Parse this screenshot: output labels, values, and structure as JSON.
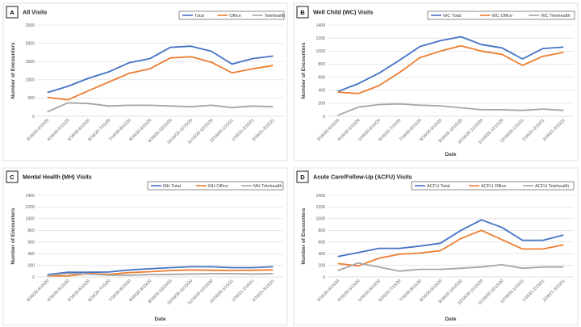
{
  "colors": {
    "total": "#4472C4",
    "office": "#ED7D31",
    "telehealth": "#A5A5A5",
    "grid": "#D9D9D9"
  },
  "chart_data": [
    {
      "type": "line",
      "letter": "A",
      "title": "All Visits",
      "xlabel": "",
      "ylabel": "Number of Encounters",
      "ylim": [
        0,
        2500
      ],
      "yticks": [
        0,
        500,
        1000,
        1500,
        2000,
        2500
      ],
      "grid": true,
      "legend": "top-right",
      "categories": [
        "3/16/20-4/15/20",
        "4/16/20-5/15/20",
        "5/16/20-6/15/20",
        "6/16/20-7/15/20",
        "7/16/20-8/15/20",
        "8/16/20-9/15/20",
        "9/16/20-10/15/20",
        "10/16/20-11/15/20",
        "11/16/20-12/15/20",
        "12/16/20-1/15/21",
        "1/16/21-2/15/21",
        "2/16/21-3/15/21"
      ],
      "series": [
        {
          "name": "Total",
          "key": "total",
          "values": [
            650,
            820,
            1040,
            1220,
            1470,
            1580,
            1890,
            1920,
            1780,
            1430,
            1580,
            1650
          ]
        },
        {
          "name": "Office",
          "key": "office",
          "values": [
            520,
            450,
            700,
            940,
            1180,
            1300,
            1600,
            1630,
            1480,
            1190,
            1300,
            1390
          ]
        },
        {
          "name": "Telehealth",
          "key": "telehealth",
          "values": [
            120,
            370,
            350,
            280,
            300,
            300,
            280,
            260,
            300,
            240,
            280,
            260
          ]
        }
      ]
    },
    {
      "type": "line",
      "letter": "B",
      "title": "Well Child (WC) Visits",
      "xlabel": "Date",
      "ylabel": "Number of Encounters",
      "ylim": [
        0,
        1400
      ],
      "yticks": [
        0,
        200,
        400,
        600,
        800,
        1000,
        1200,
        1400
      ],
      "grid": true,
      "legend": "top-right",
      "categories": [
        "3/16/20-4/15/20",
        "4/16/20-5/15/20",
        "5/16/20-6/15/20",
        "6/16/20-7/15/20",
        "7/16/20-8/15/20",
        "8/16/20-9/15/20",
        "9/16/20-10/15/20",
        "10/16/20-11/15/20",
        "11/16/20-12/15/20",
        "12/16/20-1/15/21",
        "1/16/21-2/15/21",
        "2/16/21-3/15/21"
      ],
      "series": [
        {
          "name": "WC Total",
          "key": "total",
          "values": [
            380,
            500,
            660,
            860,
            1070,
            1160,
            1220,
            1100,
            1050,
            880,
            1040,
            1060
          ]
        },
        {
          "name": "WC Office",
          "key": "office",
          "values": [
            370,
            350,
            470,
            670,
            900,
            1000,
            1080,
            1000,
            950,
            780,
            920,
            980
          ]
        },
        {
          "name": "WC Telehealth",
          "key": "telehealth",
          "values": [
            15,
            140,
            180,
            190,
            170,
            160,
            130,
            100,
            100,
            90,
            110,
            90
          ]
        }
      ]
    },
    {
      "type": "line",
      "letter": "C",
      "title": "Mental Health (MH) Visits",
      "xlabel": "Date",
      "ylabel": "Number of Encounters",
      "ylim": [
        0,
        1400
      ],
      "yticks": [
        0,
        200,
        400,
        600,
        800,
        1000,
        1200,
        1400
      ],
      "grid": true,
      "legend": "top-right",
      "categories": [
        "3/16/20-4/15/20",
        "4/16/20-5/15/20",
        "5/16/20-6/15/20",
        "6/16/20-7/15/20",
        "7/16/20-8/15/20",
        "8/16/20-9/15/20",
        "9/16/20-10/15/20",
        "10/16/20-11/15/20",
        "11/16/20-12/15/20",
        "12/16/20-1/15/21",
        "1/16/21-2/15/21",
        "2/16/21-3/15/21"
      ],
      "series": [
        {
          "name": "MH Total",
          "key": "total",
          "values": [
            40,
            80,
            80,
            85,
            120,
            140,
            160,
            175,
            175,
            160,
            160,
            175
          ]
        },
        {
          "name": "MH Office",
          "key": "office",
          "values": [
            20,
            15,
            60,
            45,
            75,
            90,
            110,
            120,
            115,
            110,
            115,
            120
          ]
        },
        {
          "name": "MH Telehealth",
          "key": "telehealth",
          "values": [
            25,
            60,
            50,
            30,
            30,
            40,
            45,
            50,
            55,
            55,
            50,
            55
          ]
        }
      ]
    },
    {
      "type": "line",
      "letter": "D",
      "title": "Acute Care/Follow-Up (ACFU) Visits",
      "xlabel": "Date",
      "ylabel": "Number of Encounters",
      "ylim": [
        0,
        1400
      ],
      "yticks": [
        0,
        200,
        400,
        600,
        800,
        1000,
        1200,
        1400
      ],
      "grid": true,
      "legend": "top-right",
      "categories": [
        "3/16/20-4/15/20",
        "4/16/20-5/15/20",
        "5/16/20-6/15/20",
        "6/16/20-7/15/20",
        "7/16/20-8/15/20",
        "8/16/20-9/15/20",
        "9/16/20-10/15/20",
        "10/16/20-11/15/20",
        "11/16/20-12/15/20",
        "12/16/20-1/15/21",
        "1/16/21-2/15/21",
        "2/16/21-3/15/21"
      ],
      "series": [
        {
          "name": "ACFU Total",
          "key": "total",
          "values": [
            350,
            420,
            490,
            490,
            530,
            580,
            800,
            980,
            850,
            630,
            630,
            720
          ]
        },
        {
          "name": "ACFU Office",
          "key": "office",
          "values": [
            230,
            190,
            320,
            390,
            410,
            450,
            660,
            800,
            640,
            480,
            480,
            550
          ]
        },
        {
          "name": "ACFU Telehealth",
          "key": "telehealth",
          "values": [
            110,
            240,
            170,
            100,
            130,
            130,
            150,
            170,
            210,
            150,
            170,
            170
          ]
        }
      ]
    }
  ]
}
